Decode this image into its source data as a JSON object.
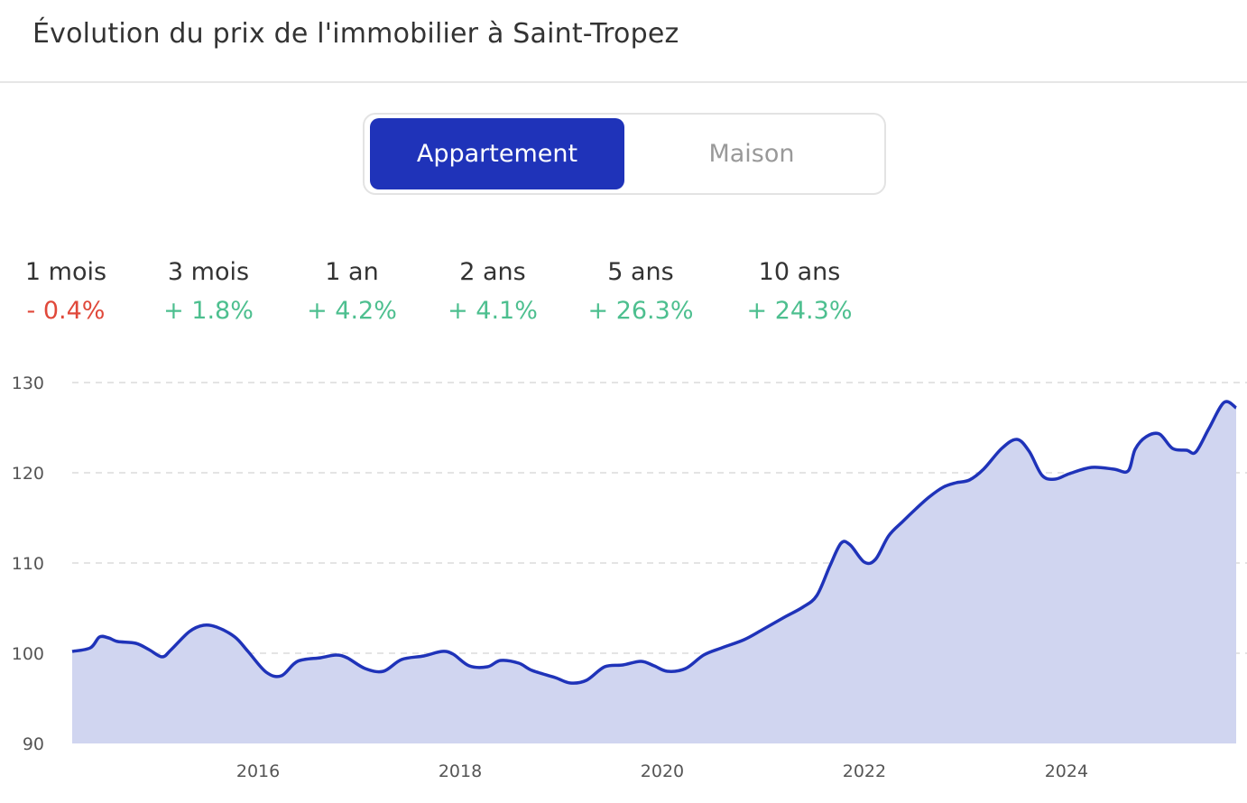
{
  "header": {
    "title": "Évolution du prix de l'immobilier à Saint-Tropez"
  },
  "toggle": {
    "options": [
      {
        "label": "Appartement",
        "active": true
      },
      {
        "label": "Maison",
        "active": false
      }
    ]
  },
  "stats": [
    {
      "period": "1 mois",
      "change": "- 0.4%",
      "trend": "negative"
    },
    {
      "period": "3 mois",
      "change": "+ 1.8%",
      "trend": "positive"
    },
    {
      "period": "1 an",
      "change": "+ 4.2%",
      "trend": "positive"
    },
    {
      "period": "2 ans",
      "change": "+ 4.1%",
      "trend": "positive"
    },
    {
      "period": "5 ans",
      "change": "+ 26.3%",
      "trend": "positive"
    },
    {
      "period": "10 ans",
      "change": "+ 24.3%",
      "trend": "positive"
    }
  ],
  "colors": {
    "accent": "#1f33b9",
    "fill": "#d0d5f0",
    "positive": "#4dbf8f",
    "negative": "#e0483a"
  },
  "chart_data": {
    "type": "area",
    "xlim": [
      2014.16,
      2025.68
    ],
    "ylim": [
      90,
      130
    ],
    "yticks": [
      90,
      100,
      110,
      120,
      130
    ],
    "xticks": [
      2016,
      2018,
      2020,
      2022,
      2024
    ],
    "grid": "horizontal dashed",
    "x": [
      2014.16,
      2014.34,
      2014.43,
      2014.52,
      2014.61,
      2014.79,
      2014.92,
      2015.05,
      2015.14,
      2015.32,
      2015.46,
      2015.59,
      2015.77,
      2015.9,
      2016.08,
      2016.23,
      2016.39,
      2016.62,
      2016.77,
      2016.88,
      2017.06,
      2017.24,
      2017.42,
      2017.64,
      2017.82,
      2017.93,
      2018.09,
      2018.27,
      2018.4,
      2018.58,
      2018.71,
      2018.94,
      2019.09,
      2019.25,
      2019.43,
      2019.61,
      2019.79,
      2019.92,
      2020.05,
      2020.23,
      2020.41,
      2020.59,
      2020.81,
      2020.99,
      2021.21,
      2021.39,
      2021.53,
      2021.66,
      2021.77,
      2021.86,
      2022.0,
      2022.11,
      2022.24,
      2022.38,
      2022.51,
      2022.64,
      2022.78,
      2022.91,
      2023.04,
      2023.18,
      2023.36,
      2023.51,
      2023.63,
      2023.76,
      2023.89,
      2024.03,
      2024.25,
      2024.47,
      2024.61,
      2024.68,
      2024.79,
      2024.92,
      2025.05,
      2025.19,
      2025.28,
      2025.41,
      2025.56,
      2025.68
    ],
    "values": [
      100.2,
      100.6,
      101.8,
      101.7,
      101.3,
      101.1,
      100.4,
      99.6,
      100.4,
      102.4,
      103.1,
      102.9,
      101.8,
      100.2,
      97.9,
      97.5,
      99.1,
      99.5,
      99.8,
      99.5,
      98.3,
      98.0,
      99.3,
      99.7,
      100.2,
      99.9,
      98.6,
      98.5,
      99.2,
      98.9,
      98.1,
      97.3,
      96.7,
      97.0,
      98.5,
      98.7,
      99.1,
      98.6,
      98.0,
      98.3,
      99.8,
      100.6,
      101.5,
      102.6,
      104.0,
      105.1,
      106.4,
      109.7,
      112.2,
      112.0,
      110.1,
      110.4,
      113.0,
      114.6,
      116.0,
      117.3,
      118.4,
      118.9,
      119.2,
      120.4,
      122.7,
      123.7,
      122.4,
      119.7,
      119.3,
      119.9,
      120.6,
      120.4,
      120.2,
      122.6,
      124.0,
      124.3,
      122.7,
      122.5,
      122.3,
      124.9,
      127.8,
      127.2
    ]
  }
}
